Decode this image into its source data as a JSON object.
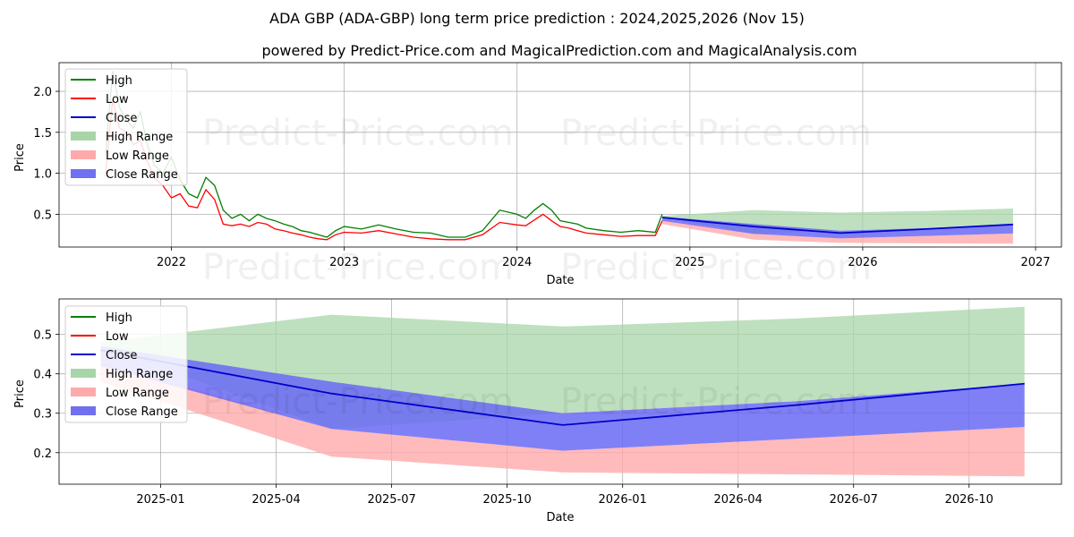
{
  "header": {
    "title": "ADA GBP (ADA-GBP) long term price prediction : 2024,2025,2026 (Nov 15)",
    "subtitle": "powered by Predict-Price.com and MagicalPrediction.com and MagicalAnalysis.com"
  },
  "watermark": "Predict-Price.com",
  "legend": {
    "items": [
      {
        "label": "High",
        "kind": "line",
        "color": "#008000"
      },
      {
        "label": "Low",
        "kind": "line",
        "color": "#ff0000"
      },
      {
        "label": "Close",
        "kind": "line",
        "color": "#0000cc"
      },
      {
        "label": "High Range",
        "kind": "patch",
        "color": "#a8d5a8"
      },
      {
        "label": "Low Range",
        "kind": "patch",
        "color": "#ffaaaa"
      },
      {
        "label": "Close Range",
        "kind": "patch",
        "color": "#7070f0"
      }
    ]
  },
  "colors": {
    "high": "#008000",
    "low": "#ff0000",
    "close": "#0000cc",
    "high_range": "#a8d5a8",
    "low_range": "#ffaaaa",
    "close_range": "#6a6af5"
  },
  "chart_data": [
    {
      "type": "line",
      "name": "long-term",
      "xlabel": "Date",
      "ylabel": "Price",
      "xlim": [
        2021.35,
        2027.15
      ],
      "ylim": [
        0.1,
        2.35
      ],
      "x_ticks": [
        2022,
        2023,
        2024,
        2025,
        2026,
        2027
      ],
      "x_tick_labels": [
        "2022",
        "2023",
        "2024",
        "2025",
        "2026",
        "2027"
      ],
      "y_ticks": [
        0.5,
        1.0,
        1.5,
        2.0
      ],
      "y_tick_labels": [
        "0.5",
        "1.0",
        "1.5",
        "2.0"
      ],
      "history_x": [
        2021.62,
        2021.66,
        2021.7,
        2021.74,
        2021.78,
        2021.82,
        2021.86,
        2021.9,
        2021.95,
        2022.0,
        2022.05,
        2022.1,
        2022.15,
        2022.2,
        2022.25,
        2022.3,
        2022.35,
        2022.4,
        2022.45,
        2022.5,
        2022.55,
        2022.6,
        2022.65,
        2022.7,
        2022.75,
        2022.8,
        2022.85,
        2022.9,
        2022.95,
        2023.0,
        2023.1,
        2023.2,
        2023.3,
        2023.4,
        2023.5,
        2023.6,
        2023.7,
        2023.8,
        2023.9,
        2024.0,
        2024.05,
        2024.1,
        2024.15,
        2024.2,
        2024.25,
        2024.3,
        2024.35,
        2024.4,
        2024.5,
        2024.6,
        2024.7,
        2024.8,
        2024.84
      ],
      "history_high": [
        1.25,
        2.25,
        1.8,
        1.65,
        1.55,
        1.75,
        1.35,
        1.1,
        1.0,
        1.2,
        0.92,
        0.75,
        0.7,
        0.95,
        0.85,
        0.55,
        0.45,
        0.5,
        0.42,
        0.5,
        0.45,
        0.42,
        0.38,
        0.35,
        0.3,
        0.28,
        0.25,
        0.22,
        0.3,
        0.35,
        0.32,
        0.37,
        0.32,
        0.28,
        0.27,
        0.22,
        0.22,
        0.3,
        0.55,
        0.5,
        0.45,
        0.55,
        0.63,
        0.55,
        0.42,
        0.4,
        0.38,
        0.33,
        0.3,
        0.28,
        0.3,
        0.28,
        0.5
      ],
      "history_low": [
        1.0,
        1.9,
        1.55,
        1.5,
        1.35,
        1.4,
        1.15,
        0.95,
        0.85,
        0.7,
        0.75,
        0.6,
        0.58,
        0.8,
        0.68,
        0.38,
        0.36,
        0.38,
        0.35,
        0.4,
        0.38,
        0.32,
        0.3,
        0.27,
        0.25,
        0.22,
        0.2,
        0.19,
        0.25,
        0.28,
        0.27,
        0.3,
        0.26,
        0.22,
        0.2,
        0.19,
        0.19,
        0.25,
        0.4,
        0.37,
        0.36,
        0.43,
        0.5,
        0.42,
        0.35,
        0.33,
        0.3,
        0.27,
        0.25,
        0.23,
        0.24,
        0.24,
        0.42
      ],
      "forecast_x": [
        2024.84,
        2025.37,
        2025.87,
        2026.37,
        2026.87
      ],
      "close": [
        0.46,
        0.35,
        0.27,
        0.32,
        0.375
      ],
      "high_range": [
        [
          0.47,
          0.48
        ],
        [
          0.26,
          0.55
        ],
        [
          0.3,
          0.52
        ],
        [
          0.33,
          0.54
        ],
        [
          0.375,
          0.57
        ]
      ],
      "close_range": [
        [
          0.42,
          0.47
        ],
        [
          0.26,
          0.38
        ],
        [
          0.205,
          0.3
        ],
        [
          0.235,
          0.33
        ],
        [
          0.265,
          0.375
        ]
      ],
      "low_range": [
        [
          0.38,
          0.43
        ],
        [
          0.19,
          0.26
        ],
        [
          0.15,
          0.205
        ],
        [
          0.145,
          0.235
        ],
        [
          0.14,
          0.265
        ]
      ]
    },
    {
      "type": "line",
      "name": "zoomed-forecast",
      "xlabel": "Date",
      "ylabel": "Price",
      "xlim": [
        2024.78,
        2026.95
      ],
      "ylim": [
        0.12,
        0.59
      ],
      "x_ticks": [
        2025.0,
        2025.25,
        2025.5,
        2025.75,
        2026.0,
        2026.25,
        2026.5,
        2026.75
      ],
      "x_tick_labels": [
        "2025-01",
        "2025-04",
        "2025-07",
        "2025-10",
        "2026-01",
        "2026-04",
        "2026-07",
        "2026-10"
      ],
      "y_ticks": [
        0.2,
        0.3,
        0.4,
        0.5
      ],
      "y_tick_labels": [
        "0.2",
        "0.3",
        "0.4",
        "0.5"
      ],
      "forecast_x": [
        2024.87,
        2025.37,
        2025.87,
        2026.37,
        2026.87
      ],
      "close": [
        0.46,
        0.35,
        0.27,
        0.32,
        0.375
      ],
      "high_range": [
        [
          0.47,
          0.48
        ],
        [
          0.26,
          0.55
        ],
        [
          0.3,
          0.52
        ],
        [
          0.33,
          0.54
        ],
        [
          0.375,
          0.57
        ]
      ],
      "close_range": [
        [
          0.42,
          0.47
        ],
        [
          0.26,
          0.38
        ],
        [
          0.205,
          0.3
        ],
        [
          0.235,
          0.33
        ],
        [
          0.265,
          0.375
        ]
      ],
      "low_range": [
        [
          0.38,
          0.43
        ],
        [
          0.19,
          0.26
        ],
        [
          0.15,
          0.205
        ],
        [
          0.145,
          0.235
        ],
        [
          0.14,
          0.265
        ]
      ]
    }
  ]
}
